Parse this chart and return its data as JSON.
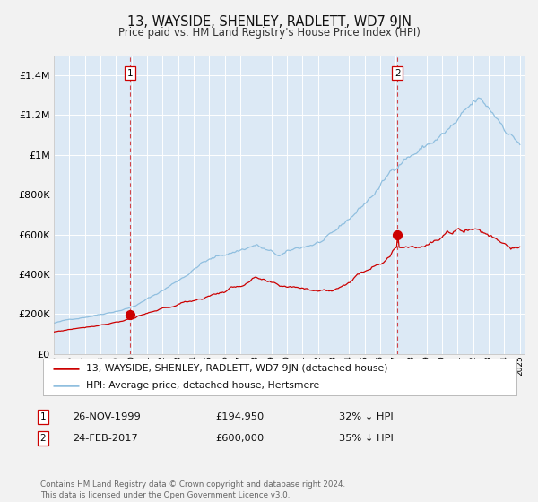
{
  "title": "13, WAYSIDE, SHENLEY, RADLETT, WD7 9JN",
  "subtitle": "Price paid vs. HM Land Registry's House Price Index (HPI)",
  "fig_bg_color": "#f2f2f2",
  "plot_bg_color": "#dce9f5",
  "line1_color": "#cc0000",
  "line2_color": "#90bfdf",
  "marker_color": "#cc0000",
  "vline_color": "#cc0000",
  "grid_color": "#ffffff",
  "legend_label1": "13, WAYSIDE, SHENLEY, RADLETT, WD7 9JN (detached house)",
  "legend_label2": "HPI: Average price, detached house, Hertsmere",
  "sale1_date": "26-NOV-1999",
  "sale1_price": "£194,950",
  "sale1_hpi": "32% ↓ HPI",
  "sale2_date": "24-FEB-2017",
  "sale2_price": "£600,000",
  "sale2_hpi": "35% ↓ HPI",
  "footer": "Contains HM Land Registry data © Crown copyright and database right 2024.\nThis data is licensed under the Open Government Licence v3.0.",
  "ylim": [
    0,
    1500000
  ],
  "yticks": [
    0,
    200000,
    400000,
    600000,
    800000,
    1000000,
    1200000,
    1400000
  ],
  "ytick_labels": [
    "£0",
    "£200K",
    "£400K",
    "£600K",
    "£800K",
    "£1M",
    "£1.2M",
    "£1.4M"
  ],
  "sale1_year": 1999.92,
  "sale2_year": 2017.12,
  "sale1_val": 194950,
  "sale2_val": 600000,
  "hpi_breakpoints": [
    1995.0,
    2000.0,
    2004.5,
    2008.0,
    2009.5,
    2013.0,
    2017.5,
    2022.3,
    2025.0
  ],
  "hpi_values": [
    155000,
    250000,
    490000,
    590000,
    520000,
    610000,
    1000000,
    1250000,
    1050000
  ],
  "red_breakpoints": [
    1995.0,
    1999.92,
    2008.0,
    2009.5,
    2013.0,
    2017.12,
    2022.0,
    2025.0
  ],
  "red_values": [
    110000,
    194950,
    400000,
    330000,
    330000,
    600000,
    750000,
    650000
  ]
}
